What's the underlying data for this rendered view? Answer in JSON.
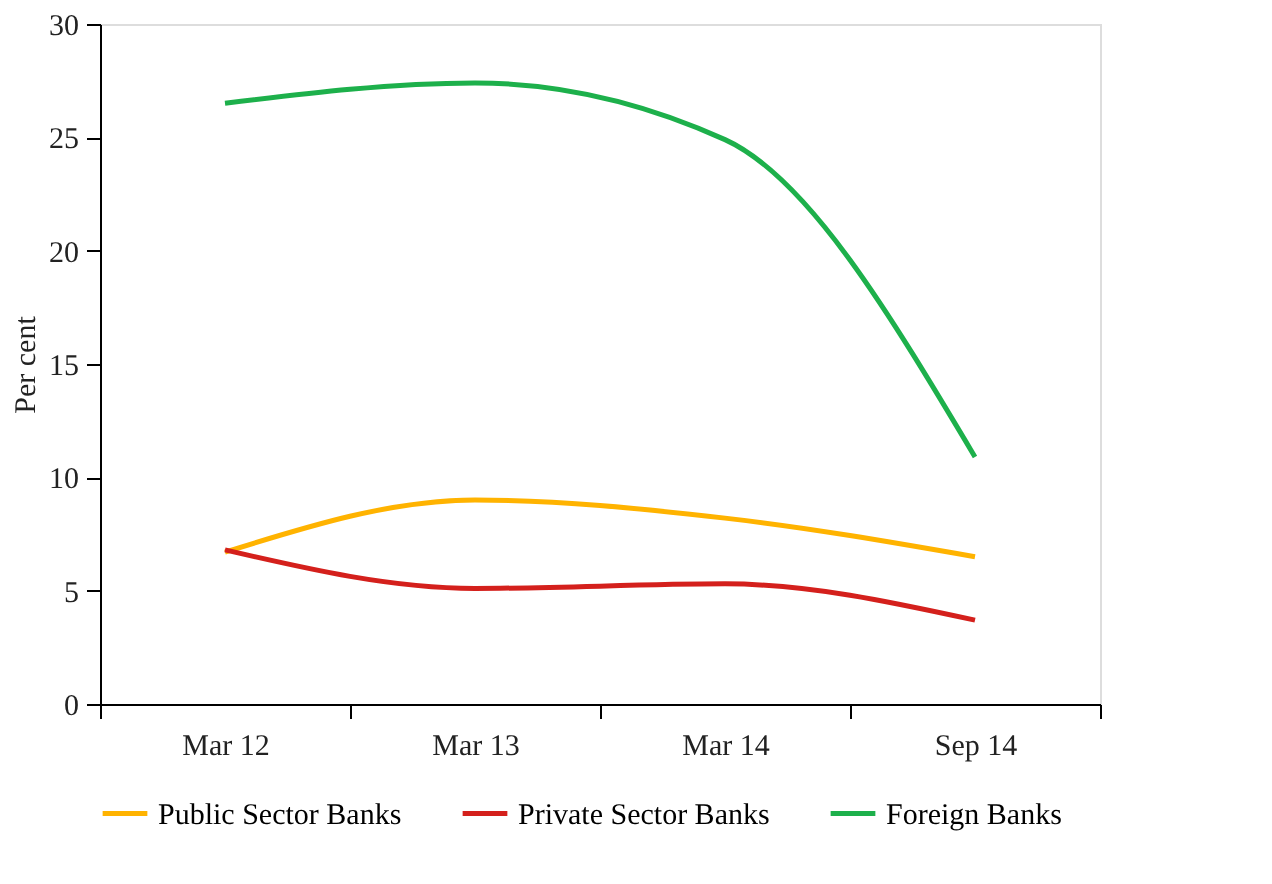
{
  "chart_data": {
    "type": "line",
    "ylabel": "Per cent",
    "categories": [
      "Mar 12",
      "Mar 13",
      "Mar 14",
      "Sep 14"
    ],
    "series": [
      {
        "name": "Public Sector Banks",
        "color": "#ffb300",
        "values": [
          6.7,
          9.0,
          8.2,
          6.5
        ]
      },
      {
        "name": "Private Sector Banks",
        "color": "#d4201c",
        "values": [
          6.8,
          5.1,
          5.3,
          3.7
        ]
      },
      {
        "name": "Foreign Banks",
        "color": "#1db04b",
        "values": [
          26.5,
          27.4,
          24.9,
          10.9
        ]
      }
    ],
    "ylim": [
      0,
      30
    ],
    "yticks": [
      0,
      5,
      10,
      15,
      20,
      25,
      30
    ],
    "grid": false,
    "legend": "bottom",
    "marker": "none",
    "line_style": "solid"
  }
}
